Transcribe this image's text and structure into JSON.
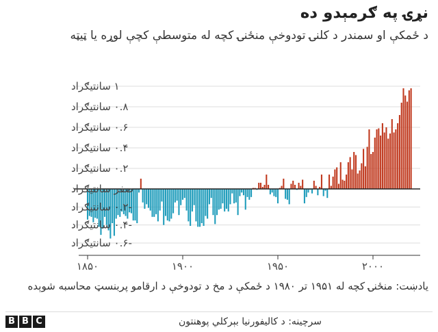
{
  "title": "نړۍ په ګرمېدو ده",
  "subtitle": "د ځمکې او سمندر د کلنۍ تودوخې منځنۍ کچه له متوسطې کچې لوړه یا ټیټه",
  "note": "یادښت: منځنۍ کچه له ۱۹۵۱ تر ۱۹۸۰ د ځمکې د مخ د تودوخې د ارقامو پربنسټ محاسبه شوېده",
  "source": "سرچینه: د کالیفورنیا بېرکلي پوهنتون",
  "logo": [
    "B",
    "B",
    "C"
  ],
  "colors": {
    "positive": "#c0391e",
    "negative": "#1f9cbb",
    "zero_line": "#222222",
    "grid": "#dddddd"
  },
  "chart_data": {
    "type": "bar",
    "title": "نړۍ په ګرمېدو ده",
    "subtitle": "د ځمکې او سمندر د کلنۍ تودوخې منځنۍ کچه له متوسطې کچې لوړه یا ټیټه",
    "ylim": [
      -0.6,
      1.0
    ],
    "xlim": [
      1850,
      2021
    ],
    "grid": true,
    "y_ticks": [
      {
        "value": 1.0,
        "label": "۱ سانتیګراد"
      },
      {
        "value": 0.8,
        "label": "۰.۸ سانتیګراد"
      },
      {
        "value": 0.6,
        "label": "۰.۶ سانتیګراد"
      },
      {
        "value": 0.4,
        "label": "۰.۴ سانتیګراد"
      },
      {
        "value": 0.2,
        "label": "۰.۲ سانتیګراد"
      },
      {
        "value": 0.0,
        "label": "صفر سانتیګراد"
      },
      {
        "value": -0.2,
        "label": "-۰.۲ سانتیګراد"
      },
      {
        "value": -0.4,
        "label": "-۰.۴ سانتیګراد"
      },
      {
        "value": -0.6,
        "label": "-۰.۶ سانتیګراد"
      }
    ],
    "x_ticks": [
      {
        "value": 1850,
        "label": "۱۸۵۰"
      },
      {
        "value": 1900,
        "label": "۱۹۰۰"
      },
      {
        "value": 1950,
        "label": "۱۹۵۰"
      },
      {
        "value": 2000,
        "label": "۲۰۰۰"
      }
    ],
    "years": [
      1850,
      1851,
      1852,
      1853,
      1854,
      1855,
      1856,
      1857,
      1858,
      1859,
      1860,
      1861,
      1862,
      1863,
      1864,
      1865,
      1866,
      1867,
      1868,
      1869,
      1870,
      1871,
      1872,
      1873,
      1874,
      1875,
      1876,
      1877,
      1878,
      1879,
      1880,
      1881,
      1882,
      1883,
      1884,
      1885,
      1886,
      1887,
      1888,
      1889,
      1890,
      1891,
      1892,
      1893,
      1894,
      1895,
      1896,
      1897,
      1898,
      1899,
      1900,
      1901,
      1902,
      1903,
      1904,
      1905,
      1906,
      1907,
      1908,
      1909,
      1910,
      1911,
      1912,
      1913,
      1914,
      1915,
      1916,
      1917,
      1918,
      1919,
      1920,
      1921,
      1922,
      1923,
      1924,
      1925,
      1926,
      1927,
      1928,
      1929,
      1930,
      1931,
      1932,
      1933,
      1934,
      1935,
      1936,
      1937,
      1938,
      1939,
      1940,
      1941,
      1942,
      1943,
      1944,
      1945,
      1946,
      1947,
      1948,
      1949,
      1950,
      1951,
      1952,
      1953,
      1954,
      1955,
      1956,
      1957,
      1958,
      1959,
      1960,
      1961,
      1962,
      1963,
      1964,
      1965,
      1966,
      1967,
      1968,
      1969,
      1970,
      1971,
      1972,
      1973,
      1974,
      1975,
      1976,
      1977,
      1978,
      1979,
      1980,
      1981,
      1982,
      1983,
      1984,
      1985,
      1986,
      1987,
      1988,
      1989,
      1990,
      1991,
      1992,
      1993,
      1994,
      1995,
      1996,
      1997,
      1998,
      1999,
      2000,
      2001,
      2002,
      2003,
      2004,
      2005,
      2006,
      2007,
      2008,
      2009,
      2010,
      2011,
      2012,
      2013,
      2014,
      2015,
      2016,
      2017,
      2018,
      2019,
      2020
    ],
    "values": [
      -0.34,
      -0.3,
      -0.31,
      -0.37,
      -0.32,
      -0.33,
      -0.42,
      -0.51,
      -0.44,
      -0.31,
      -0.4,
      -0.46,
      -0.55,
      -0.38,
      -0.52,
      -0.33,
      -0.29,
      -0.31,
      -0.25,
      -0.28,
      -0.3,
      -0.33,
      -0.26,
      -0.27,
      -0.35,
      -0.35,
      -0.38,
      -0.04,
      0.1,
      -0.15,
      -0.22,
      -0.17,
      -0.21,
      -0.24,
      -0.31,
      -0.31,
      -0.28,
      -0.36,
      -0.24,
      -0.14,
      -0.4,
      -0.3,
      -0.35,
      -0.36,
      -0.33,
      -0.27,
      -0.15,
      -0.13,
      -0.29,
      -0.18,
      -0.12,
      -0.1,
      -0.24,
      -0.36,
      -0.41,
      -0.25,
      -0.18,
      -0.36,
      -0.42,
      -0.42,
      -0.38,
      -0.41,
      -0.3,
      -0.33,
      -0.17,
      -0.1,
      -0.29,
      -0.39,
      -0.29,
      -0.23,
      -0.22,
      -0.16,
      -0.25,
      -0.22,
      -0.25,
      -0.17,
      -0.05,
      -0.16,
      -0.15,
      -0.29,
      -0.08,
      -0.04,
      -0.07,
      -0.23,
      -0.09,
      -0.12,
      -0.09,
      0.01,
      0.01,
      -0.01,
      0.06,
      0.06,
      0.02,
      0.04,
      0.14,
      0.04,
      -0.06,
      -0.04,
      -0.08,
      -0.09,
      -0.16,
      0.01,
      0.03,
      0.1,
      -0.11,
      -0.12,
      -0.17,
      0.05,
      0.08,
      0.04,
      -0.01,
      0.06,
      0.03,
      0.09,
      -0.16,
      -0.09,
      -0.04,
      -0.01,
      -0.05,
      0.08,
      0.03,
      -0.07,
      0.02,
      0.14,
      -0.08,
      -0.02,
      -0.1,
      0.14,
      0.03,
      0.12,
      0.19,
      0.21,
      0.05,
      0.26,
      0.09,
      0.08,
      0.14,
      0.26,
      0.31,
      0.19,
      0.36,
      0.33,
      0.15,
      0.18,
      0.25,
      0.39,
      0.22,
      0.41,
      0.58,
      0.34,
      0.36,
      0.5,
      0.58,
      0.59,
      0.52,
      0.64,
      0.55,
      0.6,
      0.49,
      0.54,
      0.68,
      0.55,
      0.58,
      0.64,
      0.72,
      0.84,
      0.98,
      0.91,
      0.85,
      0.96,
      0.98
    ]
  }
}
